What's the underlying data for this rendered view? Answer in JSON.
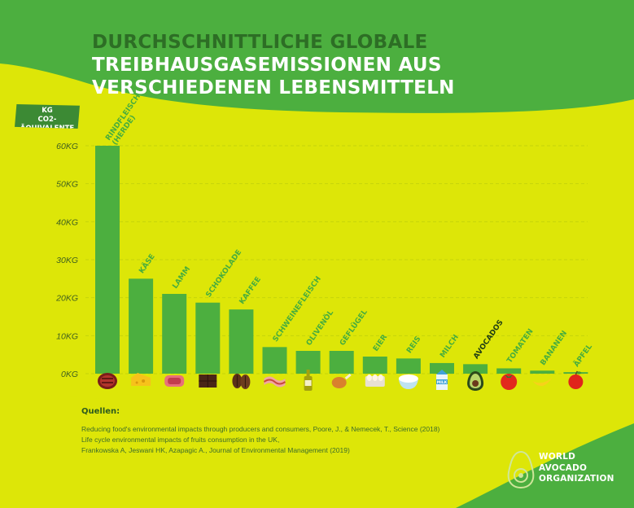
{
  "title": {
    "line1": "DURCHSCHNITTLICHE GLOBALE",
    "line2": "TREIBHAUSGASEMISSIONEN AUS",
    "line3": "VERSCHIEDENEN LEBENSMITTELN"
  },
  "colors": {
    "background": "#dde608",
    "accent": "#4caf3f",
    "bar": "#4caf3f",
    "title_dark": "#2d6e25",
    "label": "#47ad3d",
    "highlight_label": "#1f3d14"
  },
  "chart_data": {
    "type": "bar",
    "title": "DURCHSCHNITTLICHE GLOBALE TREIBHAUSGASEMISSIONEN AUS VERSCHIEDENEN LEBENSMITTELN",
    "ylabel": "KG CO2-ÄQUIVALENTE",
    "ylabel_lines": [
      "KG",
      "CO2-ÄQUIVALENTE"
    ],
    "ylim": [
      0,
      60
    ],
    "yticks": [
      0,
      10,
      20,
      30,
      40,
      50,
      60
    ],
    "ytick_labels": [
      "0KG",
      "10KG",
      "20KG",
      "30KG",
      "40KG",
      "50KG",
      "60KG"
    ],
    "grid": true,
    "categories": [
      {
        "label_lines": [
          "RINDFLEISCH",
          "(HERDE)"
        ],
        "value": 60,
        "icon": "steak-icon"
      },
      {
        "label_lines": [
          "KÄSE"
        ],
        "value": 25,
        "icon": "cheese-icon"
      },
      {
        "label_lines": [
          "LAMM"
        ],
        "value": 21,
        "icon": "lamb-meat-icon"
      },
      {
        "label_lines": [
          "SCHOKOLADE"
        ],
        "value": 18.7,
        "icon": "chocolate-icon"
      },
      {
        "label_lines": [
          "KAFFEE"
        ],
        "value": 16.9,
        "icon": "coffee-beans-icon"
      },
      {
        "label_lines": [
          "SCHWEINEFLEISCH"
        ],
        "value": 7,
        "icon": "bacon-icon"
      },
      {
        "label_lines": [
          "OLIVENÖL"
        ],
        "value": 6,
        "icon": "olive-oil-icon"
      },
      {
        "label_lines": [
          "GEFLÜGEL"
        ],
        "value": 6,
        "icon": "chicken-leg-icon"
      },
      {
        "label_lines": [
          "EIER"
        ],
        "value": 4.5,
        "icon": "eggs-icon"
      },
      {
        "label_lines": [
          "REIS"
        ],
        "value": 4,
        "icon": "rice-icon"
      },
      {
        "label_lines": [
          "MILCH"
        ],
        "value": 2.8,
        "icon": "milk-icon",
        "icon_text": "MILK"
      },
      {
        "label_lines": [
          "AVOCADOS"
        ],
        "value": 2.5,
        "icon": "avocado-icon",
        "highlight": true
      },
      {
        "label_lines": [
          "TOMATEN"
        ],
        "value": 1.4,
        "icon": "tomato-icon"
      },
      {
        "label_lines": [
          "BANANEN"
        ],
        "value": 0.8,
        "icon": "banana-icon"
      },
      {
        "label_lines": [
          "ÄPFEL"
        ],
        "value": 0.4,
        "icon": "apple-icon"
      }
    ]
  },
  "sources": {
    "heading": "Quellen:",
    "lines": [
      "Reducing food's environmental impacts through producers and consumers, Poore, J., & Nemecek, T., Science (2018)",
      "Life cycle environmental impacts of fruits consumption in the UK,",
      "Frankowska A, Jeswani HK, Azapagic A., Journal of Environmental Management (2019)"
    ]
  },
  "logo": {
    "line1": "WORLD",
    "line2": "AVOCADO",
    "line3": "ORGANIZATION"
  }
}
